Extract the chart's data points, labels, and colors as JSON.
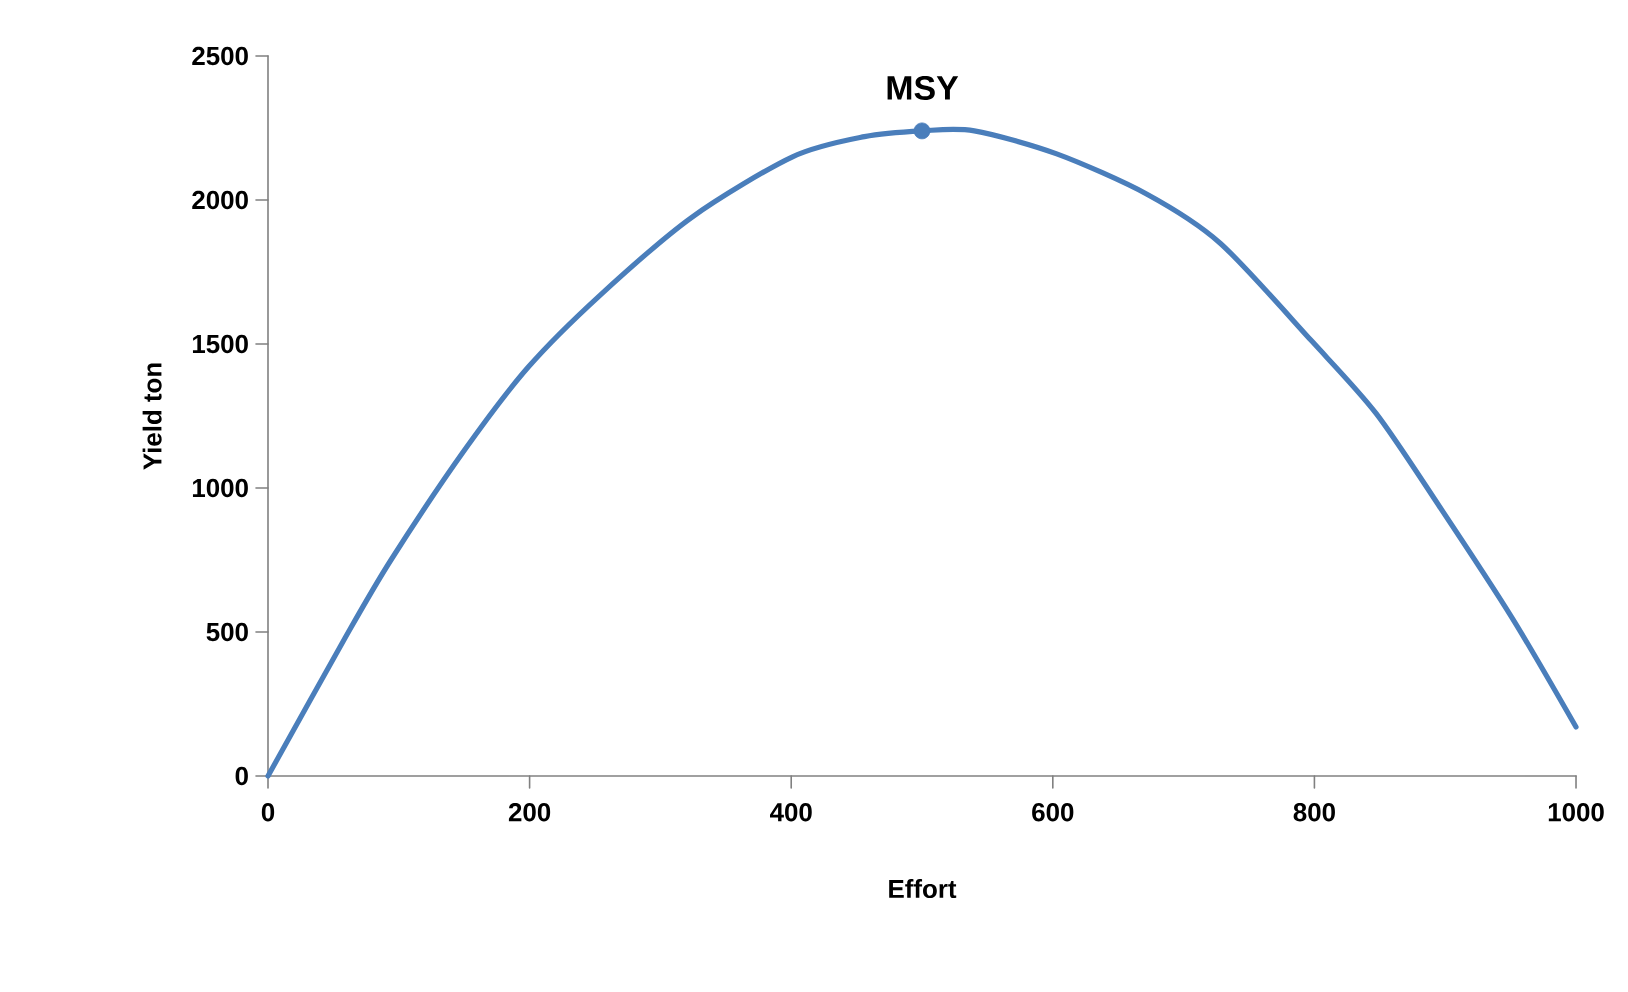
{
  "chart_data": {
    "type": "line",
    "xlabel": "Effort",
    "ylabel": "Yield  ton",
    "xlim": [
      0,
      1000
    ],
    "xticks": [
      0,
      200,
      400,
      600,
      800,
      1000
    ],
    "ylim": [
      0,
      2500
    ],
    "yticks": [
      0,
      500,
      1000,
      1500,
      2000,
      2500
    ],
    "grid": false,
    "line_style": "solid",
    "series": [
      {
        "color": "#4a7ebb",
        "marker": "none",
        "x": [
          0,
          59,
          94,
          150,
          199,
          254,
          324,
          401,
          456,
          500,
          540,
          603,
          672,
          728,
          798,
          847,
          895,
          951,
          1000
        ],
        "values": [
          0,
          480,
          750,
          1130,
          1420,
          1670,
          1940,
          2150,
          2220,
          2240,
          2240,
          2160,
          2020,
          1850,
          1510,
          1260,
          940,
          550,
          170
        ]
      },
      {
        "type": "scatter",
        "color": "#4a7ebb",
        "marker": "circle",
        "x": [
          500
        ],
        "values": [
          2240
        ]
      }
    ],
    "annotations": [
      {
        "text": "MSY",
        "x": 500,
        "y": 2240
      }
    ]
  }
}
